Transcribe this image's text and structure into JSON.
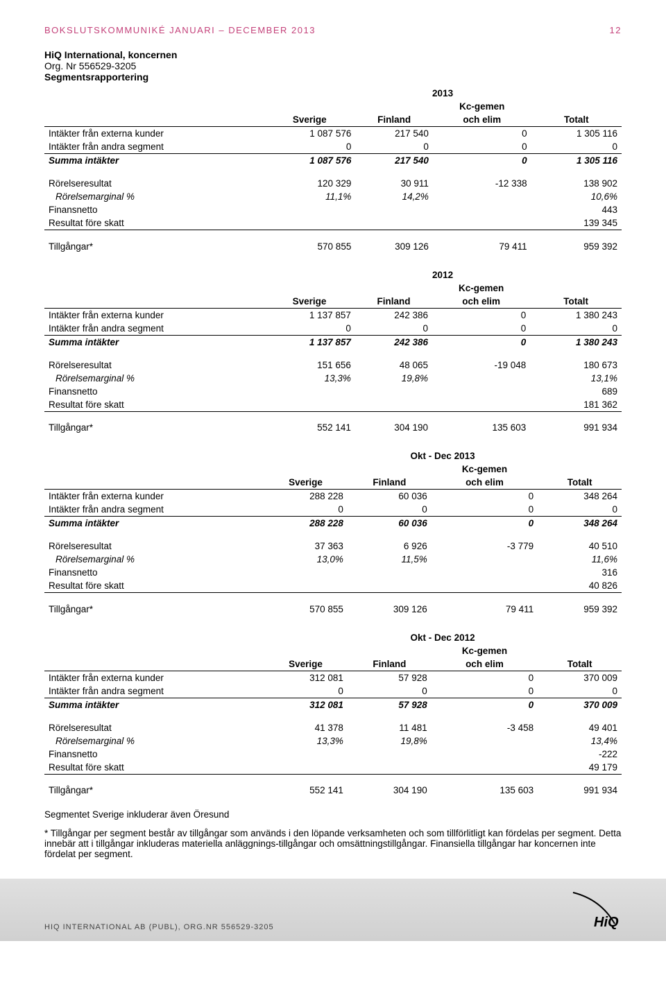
{
  "header": {
    "title": "BOKSLUTSKOMMUNIKÉ JANUARI – DECEMBER 2013",
    "page_number": "12"
  },
  "org": {
    "name": "HiQ International, koncernen",
    "org_no": "Org. Nr 556529-3205",
    "section": "Segmentsrapportering"
  },
  "columns": {
    "c1": "Sverige",
    "c2": "Finland",
    "c3": "Kc-gemen och elim",
    "c4": "Totalt"
  },
  "labels": {
    "intakter_ext": "Intäkter från externa kunder",
    "intakter_and": "Intäkter från andra segment",
    "summa": "Summa intäkter",
    "rorelse": "Rörelseresultat",
    "marginal": "Rörelsemarginal %",
    "finansnetto": "Finansnetto",
    "resultat": "Resultat före skatt",
    "tillgangar": "Tillgångar*"
  },
  "periods": {
    "p1": {
      "title": "2013",
      "ext": [
        "1 087 576",
        "217 540",
        "0",
        "1 305 116"
      ],
      "and": [
        "0",
        "0",
        "0",
        "0"
      ],
      "sum": [
        "1 087 576",
        "217 540",
        "0",
        "1 305 116"
      ],
      "ror": [
        "120 329",
        "30 911",
        "-12 338",
        "138 902"
      ],
      "mar": [
        "11,1%",
        "14,2%",
        "",
        "10,6%"
      ],
      "fin": [
        "",
        "",
        "",
        "443"
      ],
      "res": [
        "",
        "",
        "",
        "139 345"
      ],
      "til": [
        "570 855",
        "309 126",
        "79 411",
        "959 392"
      ]
    },
    "p2": {
      "title": "2012",
      "ext": [
        "1 137 857",
        "242 386",
        "0",
        "1 380 243"
      ],
      "and": [
        "0",
        "0",
        "0",
        "0"
      ],
      "sum": [
        "1 137 857",
        "242 386",
        "0",
        "1 380 243"
      ],
      "ror": [
        "151 656",
        "48 065",
        "-19 048",
        "180 673"
      ],
      "mar": [
        "13,3%",
        "19,8%",
        "",
        "13,1%"
      ],
      "fin": [
        "",
        "",
        "",
        "689"
      ],
      "res": [
        "",
        "",
        "",
        "181 362"
      ],
      "til": [
        "552 141",
        "304 190",
        "135 603",
        "991 934"
      ]
    },
    "p3": {
      "title": "Okt - Dec 2013",
      "ext": [
        "288 228",
        "60 036",
        "0",
        "348 264"
      ],
      "and": [
        "0",
        "0",
        "0",
        "0"
      ],
      "sum": [
        "288 228",
        "60 036",
        "0",
        "348 264"
      ],
      "ror": [
        "37 363",
        "6 926",
        "-3 779",
        "40 510"
      ],
      "mar": [
        "13,0%",
        "11,5%",
        "",
        "11,6%"
      ],
      "fin": [
        "",
        "",
        "",
        "316"
      ],
      "res": [
        "",
        "",
        "",
        "40 826"
      ],
      "til": [
        "570 855",
        "309 126",
        "79 411",
        "959 392"
      ]
    },
    "p4": {
      "title": "Okt - Dec 2012",
      "ext": [
        "312 081",
        "57 928",
        "0",
        "370 009"
      ],
      "and": [
        "0",
        "0",
        "0",
        "0"
      ],
      "sum": [
        "312 081",
        "57 928",
        "0",
        "370 009"
      ],
      "ror": [
        "41 378",
        "11 481",
        "-3 458",
        "49 401"
      ],
      "mar": [
        "13,3%",
        "19,8%",
        "",
        "13,4%"
      ],
      "fin": [
        "",
        "",
        "",
        "-222"
      ],
      "res": [
        "",
        "",
        "",
        "49 179"
      ],
      "til": [
        "552 141",
        "304 190",
        "135 603",
        "991 934"
      ]
    }
  },
  "footnote1": "Segmentet Sverige inkluderar även Öresund",
  "footnote2": "* Tillgångar per segment består av tillgångar som används i den löpande verksamheten och som tillförlitligt kan fördelas per segment. Detta innebär att i tillgångar inkluderas materiella anläggnings-tillgångar och omsättningstillgångar. Finansiella tillgångar har koncernen inte fördelat per segment.",
  "footer": {
    "text": "HIQ INTERNATIONAL AB (PUBL), ORG.NR 556529-3205",
    "logo": "HiQ"
  },
  "colors": {
    "accent": "#c4417a",
    "text": "#000000",
    "footer_text": "#444444"
  }
}
